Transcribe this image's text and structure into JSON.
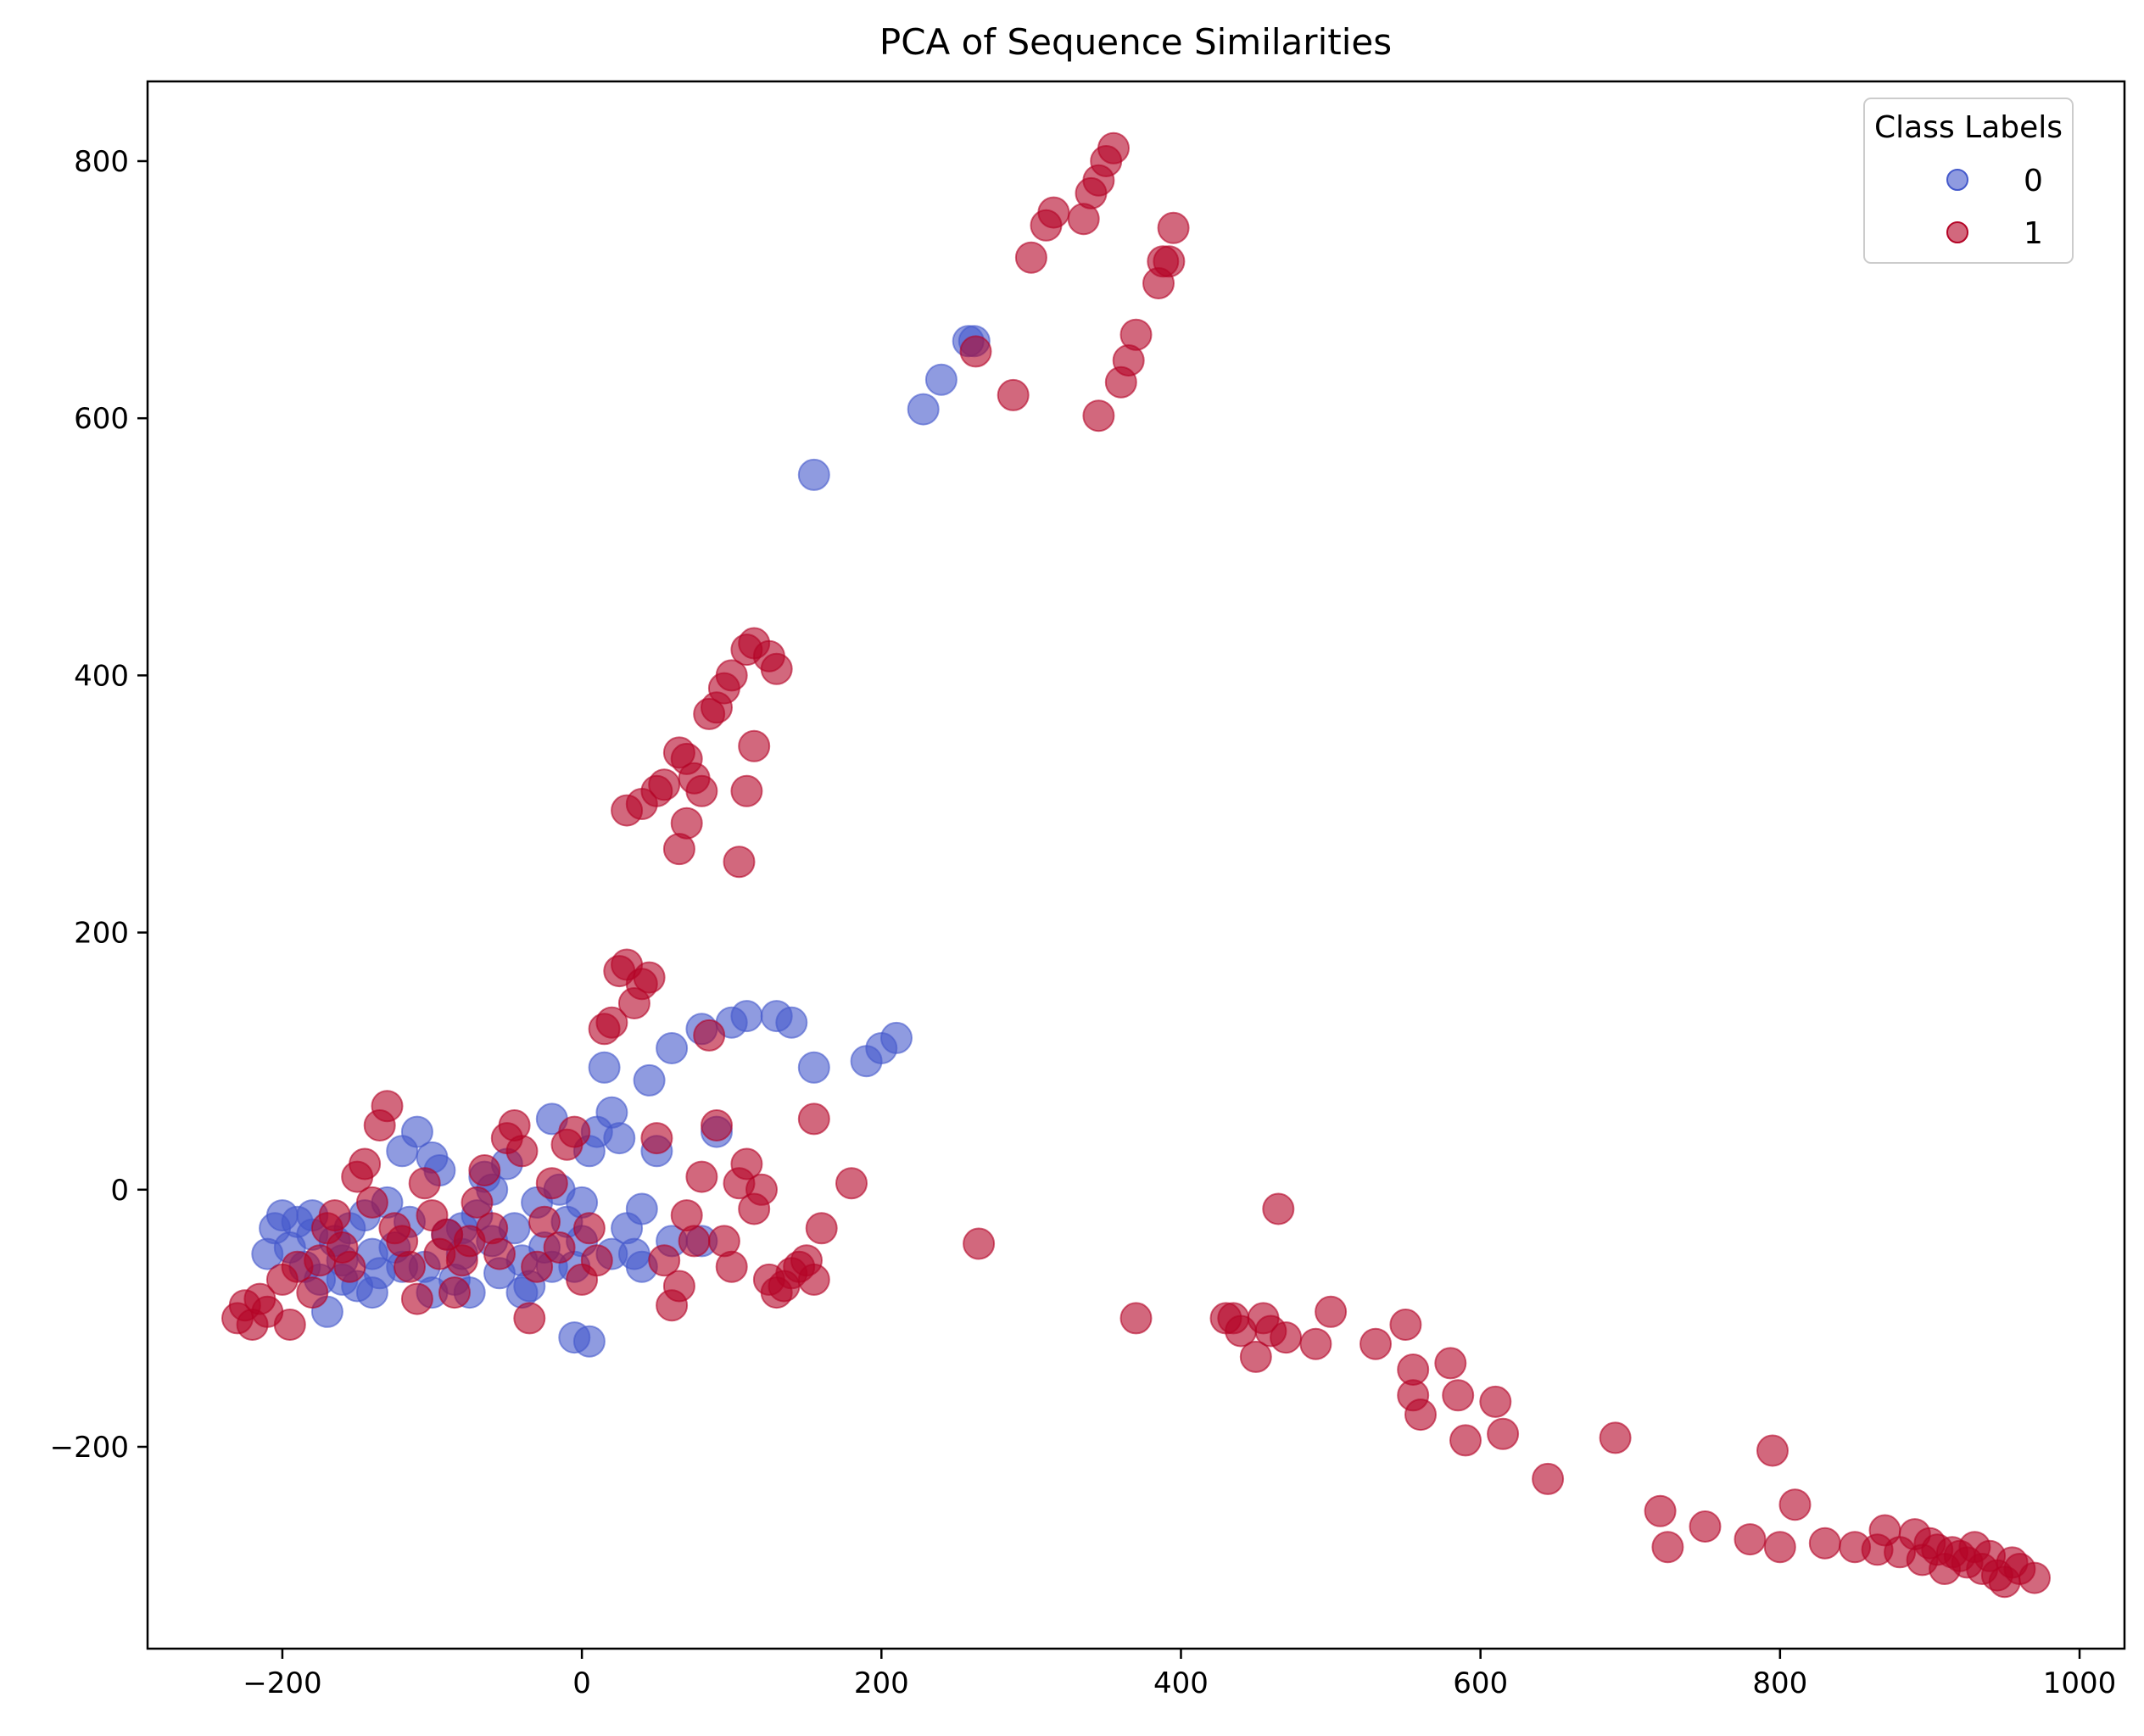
{
  "chart_data": {
    "type": "scatter",
    "title": "PCA of Sequence Similarities",
    "xlabel": "",
    "ylabel": "",
    "xlim": [
      -290,
      1030
    ],
    "ylim": [
      -357,
      862
    ],
    "xticks": [
      -200,
      0,
      200,
      400,
      600,
      800,
      1000
    ],
    "yticks": [
      -200,
      0,
      200,
      400,
      600,
      800
    ],
    "xtick_labels": [
      "−200",
      "0",
      "200",
      "400",
      "600",
      "800",
      "1000"
    ],
    "ytick_labels": [
      "−200",
      "0",
      "200",
      "400",
      "600",
      "800"
    ],
    "grid": false,
    "legend": {
      "title": "Class Labels",
      "position": "top-right"
    },
    "series": [
      {
        "name": "0",
        "color": "#4459cb",
        "points": [
          [
            -210,
            -50
          ],
          [
            -205,
            -30
          ],
          [
            -200,
            -20
          ],
          [
            -195,
            -45
          ],
          [
            -190,
            -25
          ],
          [
            -185,
            -60
          ],
          [
            -180,
            -35
          ],
          [
            -175,
            -70
          ],
          [
            -170,
            -95
          ],
          [
            -165,
            -40
          ],
          [
            -160,
            -55
          ],
          [
            -155,
            -30
          ],
          [
            -150,
            -75
          ],
          [
            -145,
            -20
          ],
          [
            -140,
            -50
          ],
          [
            -135,
            -65
          ],
          [
            -130,
            -10
          ],
          [
            -125,
            -45
          ],
          [
            -120,
            30
          ],
          [
            -115,
            -25
          ],
          [
            -110,
            45
          ],
          [
            -105,
            -60
          ],
          [
            -100,
            25
          ],
          [
            -95,
            15
          ],
          [
            -90,
            -35
          ],
          [
            -85,
            -70
          ],
          [
            -80,
            -50
          ],
          [
            -75,
            -80
          ],
          [
            -70,
            -20
          ],
          [
            -65,
            10
          ],
          [
            -60,
            -40
          ],
          [
            -55,
            -65
          ],
          [
            -50,
            20
          ],
          [
            -45,
            -30
          ],
          [
            -40,
            -55
          ],
          [
            -35,
            -75
          ],
          [
            -30,
            -10
          ],
          [
            -25,
            -45
          ],
          [
            -20,
            55
          ],
          [
            -15,
            0
          ],
          [
            -10,
            -25
          ],
          [
            -5,
            -60
          ],
          [
            0,
            -40
          ],
          [
            5,
            30
          ],
          [
            10,
            45
          ],
          [
            15,
            95
          ],
          [
            20,
            60
          ],
          [
            25,
            40
          ],
          [
            30,
            -30
          ],
          [
            35,
            -50
          ],
          [
            40,
            -15
          ],
          [
            45,
            85
          ],
          [
            50,
            30
          ],
          [
            60,
            110
          ],
          [
            80,
            125
          ],
          [
            90,
            45
          ],
          [
            100,
            130
          ],
          [
            110,
            135
          ],
          [
            130,
            135
          ],
          [
            140,
            130
          ],
          [
            155,
            95
          ],
          [
            190,
            100
          ],
          [
            200,
            110
          ],
          [
            210,
            118
          ],
          [
            -5,
            -115
          ],
          [
            5,
            -118
          ],
          [
            155,
            556
          ],
          [
            228,
            607
          ],
          [
            240,
            630
          ],
          [
            258,
            660
          ],
          [
            262,
            660
          ],
          [
            -180,
            -20
          ],
          [
            -160,
            -70
          ],
          [
            -140,
            -80
          ],
          [
            -120,
            -60
          ],
          [
            -100,
            -80
          ],
          [
            -80,
            -30
          ],
          [
            -60,
            0
          ],
          [
            -40,
            -80
          ],
          [
            -20,
            -60
          ],
          [
            0,
            -10
          ],
          [
            20,
            -50
          ],
          [
            40,
            -60
          ],
          [
            60,
            -40
          ],
          [
            80,
            -40
          ]
        ]
      },
      {
        "name": "1",
        "color": "#b40426",
        "points": [
          [
            -230,
            -100
          ],
          [
            -225,
            -90
          ],
          [
            -220,
            -105
          ],
          [
            -215,
            -85
          ],
          [
            -210,
            -95
          ],
          [
            -200,
            -70
          ],
          [
            -195,
            -105
          ],
          [
            -190,
            -60
          ],
          [
            -180,
            -80
          ],
          [
            -175,
            -55
          ],
          [
            -170,
            -30
          ],
          [
            -165,
            -20
          ],
          [
            -160,
            -45
          ],
          [
            -155,
            -60
          ],
          [
            -150,
            10
          ],
          [
            -145,
            20
          ],
          [
            -140,
            -10
          ],
          [
            -135,
            50
          ],
          [
            -130,
            65
          ],
          [
            -125,
            -30
          ],
          [
            -120,
            -40
          ],
          [
            -115,
            -60
          ],
          [
            -110,
            -85
          ],
          [
            -105,
            5
          ],
          [
            -100,
            -20
          ],
          [
            -95,
            -50
          ],
          [
            -90,
            -35
          ],
          [
            -85,
            -80
          ],
          [
            -80,
            -55
          ],
          [
            -75,
            -40
          ],
          [
            -70,
            -10
          ],
          [
            -65,
            15
          ],
          [
            -60,
            -30
          ],
          [
            -55,
            -50
          ],
          [
            -50,
            40
          ],
          [
            -45,
            50
          ],
          [
            -40,
            30
          ],
          [
            -35,
            -100
          ],
          [
            -30,
            -60
          ],
          [
            -25,
            -25
          ],
          [
            -20,
            5
          ],
          [
            -15,
            -45
          ],
          [
            -10,
            35
          ],
          [
            -5,
            45
          ],
          [
            0,
            -70
          ],
          [
            5,
            -30
          ],
          [
            10,
            -55
          ],
          [
            15,
            125
          ],
          [
            20,
            130
          ],
          [
            25,
            170
          ],
          [
            30,
            175
          ],
          [
            35,
            145
          ],
          [
            40,
            160
          ],
          [
            45,
            165
          ],
          [
            50,
            40
          ],
          [
            55,
            -55
          ],
          [
            60,
            -90
          ],
          [
            65,
            -75
          ],
          [
            70,
            -20
          ],
          [
            75,
            -40
          ],
          [
            80,
            10
          ],
          [
            85,
            120
          ],
          [
            90,
            50
          ],
          [
            95,
            -40
          ],
          [
            100,
            -60
          ],
          [
            105,
            5
          ],
          [
            110,
            20
          ],
          [
            115,
            -15
          ],
          [
            120,
            0
          ],
          [
            125,
            -70
          ],
          [
            130,
            -80
          ],
          [
            135,
            -75
          ],
          [
            140,
            -65
          ],
          [
            145,
            -60
          ],
          [
            150,
            -55
          ],
          [
            155,
            -70
          ],
          [
            155,
            55
          ],
          [
            160,
            -30
          ],
          [
            180,
            5
          ],
          [
            30,
            295
          ],
          [
            40,
            300
          ],
          [
            50,
            310
          ],
          [
            55,
            315
          ],
          [
            65,
            265
          ],
          [
            70,
            285
          ],
          [
            65,
            340
          ],
          [
            70,
            335
          ],
          [
            75,
            320
          ],
          [
            80,
            310
          ],
          [
            85,
            370
          ],
          [
            90,
            375
          ],
          [
            95,
            390
          ],
          [
            100,
            400
          ],
          [
            105,
            255
          ],
          [
            110,
            310
          ],
          [
            115,
            345
          ],
          [
            110,
            420
          ],
          [
            115,
            425
          ],
          [
            125,
            415
          ],
          [
            130,
            405
          ],
          [
            300,
            725
          ],
          [
            310,
            750
          ],
          [
            315,
            760
          ],
          [
            335,
            755
          ],
          [
            340,
            775
          ],
          [
            345,
            785
          ],
          [
            350,
            800
          ],
          [
            355,
            810
          ],
          [
            345,
            602
          ],
          [
            360,
            628
          ],
          [
            365,
            645
          ],
          [
            370,
            665
          ],
          [
            385,
            705
          ],
          [
            388,
            722
          ],
          [
            392,
            722
          ],
          [
            395,
            748
          ],
          [
            263,
            652
          ],
          [
            288,
            618
          ],
          [
            265,
            -42
          ],
          [
            370,
            -100
          ],
          [
            430,
            -100
          ],
          [
            435,
            -100
          ],
          [
            440,
            -110
          ],
          [
            450,
            -130
          ],
          [
            455,
            -100
          ],
          [
            460,
            -110
          ],
          [
            465,
            -15
          ],
          [
            470,
            -115
          ],
          [
            490,
            -120
          ],
          [
            500,
            -95
          ],
          [
            530,
            -120
          ],
          [
            550,
            -105
          ],
          [
            555,
            -140
          ],
          [
            555,
            -160
          ],
          [
            560,
            -175
          ],
          [
            580,
            -135
          ],
          [
            585,
            -160
          ],
          [
            590,
            -195
          ],
          [
            610,
            -165
          ],
          [
            615,
            -190
          ],
          [
            645,
            -225
          ],
          [
            690,
            -193
          ],
          [
            720,
            -250
          ],
          [
            725,
            -278
          ],
          [
            750,
            -262
          ],
          [
            780,
            -272
          ],
          [
            795,
            -203
          ],
          [
            800,
            -278
          ],
          [
            810,
            -245
          ],
          [
            830,
            -275
          ],
          [
            850,
            -278
          ],
          [
            865,
            -280
          ],
          [
            870,
            -265
          ],
          [
            880,
            -282
          ],
          [
            890,
            -268
          ],
          [
            895,
            -288
          ],
          [
            900,
            -275
          ],
          [
            905,
            -280
          ],
          [
            910,
            -295
          ],
          [
            915,
            -282
          ],
          [
            920,
            -285
          ],
          [
            925,
            -290
          ],
          [
            930,
            -278
          ],
          [
            935,
            -295
          ],
          [
            940,
            -285
          ],
          [
            945,
            -300
          ],
          [
            950,
            -305
          ],
          [
            955,
            -290
          ],
          [
            960,
            -295
          ],
          [
            970,
            -302
          ]
        ]
      }
    ]
  }
}
